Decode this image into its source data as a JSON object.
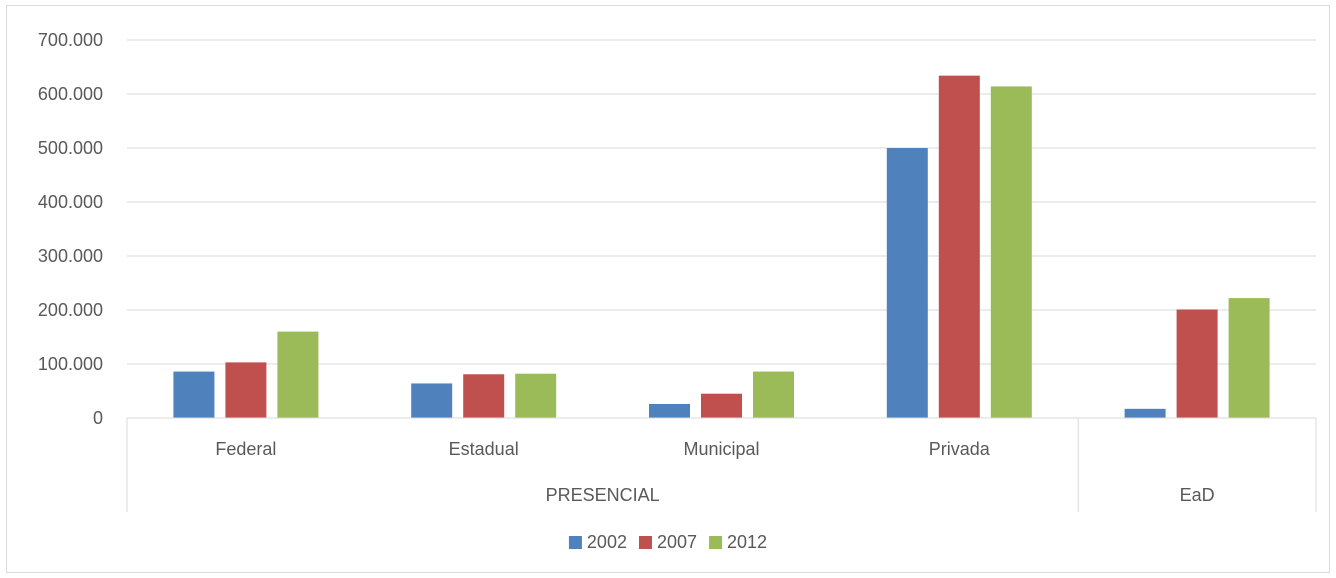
{
  "chart_data": {
    "type": "bar",
    "categories": [
      "Federal",
      "Estadual",
      "Municipal",
      "Privada",
      ""
    ],
    "groups": [
      {
        "label": "PRESENCIAL",
        "categories": [
          "Federal",
          "Estadual",
          "Municipal",
          "Privada"
        ]
      },
      {
        "label": "EaD",
        "categories": [
          ""
        ]
      }
    ],
    "series": [
      {
        "name": "2002",
        "color": "#4f81bd",
        "values": [
          86000,
          64000,
          26000,
          500000,
          17000
        ]
      },
      {
        "name": "2007",
        "color": "#c0504d",
        "values": [
          103000,
          81000,
          45000,
          634000,
          201000
        ]
      },
      {
        "name": "2012",
        "color": "#9bbb59",
        "values": [
          160000,
          82000,
          86000,
          614000,
          222000
        ]
      }
    ],
    "yticks": [
      "0",
      "100.000",
      "200.000",
      "300.000",
      "400.000",
      "500.000",
      "600.000",
      "700.000"
    ],
    "ylim": [
      0,
      700000
    ],
    "grid": true,
    "legend": "bottom",
    "title": "",
    "xlabel": "",
    "ylabel": ""
  }
}
